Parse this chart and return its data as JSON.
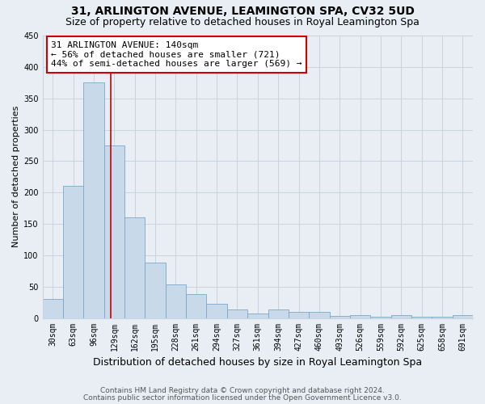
{
  "title": "31, ARLINGTON AVENUE, LEAMINGTON SPA, CV32 5UD",
  "subtitle": "Size of property relative to detached houses in Royal Leamington Spa",
  "xlabel": "Distribution of detached houses by size in Royal Leamington Spa",
  "ylabel": "Number of detached properties",
  "categories": [
    "30sqm",
    "63sqm",
    "96sqm",
    "129sqm",
    "162sqm",
    "195sqm",
    "228sqm",
    "261sqm",
    "294sqm",
    "327sqm",
    "361sqm",
    "394sqm",
    "427sqm",
    "460sqm",
    "493sqm",
    "526sqm",
    "559sqm",
    "592sqm",
    "625sqm",
    "658sqm",
    "691sqm"
  ],
  "values": [
    30,
    210,
    375,
    275,
    160,
    88,
    53,
    38,
    23,
    13,
    7,
    13,
    10,
    10,
    3,
    5,
    2,
    4,
    2,
    2,
    4
  ],
  "bar_color": "#c8d9ea",
  "bar_edge_color": "#7ba8c8",
  "bar_width": 1.0,
  "ylim": [
    0,
    450
  ],
  "yticks": [
    0,
    50,
    100,
    150,
    200,
    250,
    300,
    350,
    400,
    450
  ],
  "vline_color": "#cc0000",
  "annotation_text": "31 ARLINGTON AVENUE: 140sqm\n← 56% of detached houses are smaller (721)\n44% of semi-detached houses are larger (569) →",
  "annotation_box_color": "#ffffff",
  "annotation_box_edge": "#cc0000",
  "footer1": "Contains HM Land Registry data © Crown copyright and database right 2024.",
  "footer2": "Contains public sector information licensed under the Open Government Licence v3.0.",
  "title_fontsize": 10,
  "subtitle_fontsize": 9,
  "xlabel_fontsize": 9,
  "ylabel_fontsize": 8,
  "tick_fontsize": 7,
  "footer_fontsize": 6.5,
  "annotation_fontsize": 8,
  "grid_color": "#c8d4de",
  "background_color": "#e8eef4"
}
